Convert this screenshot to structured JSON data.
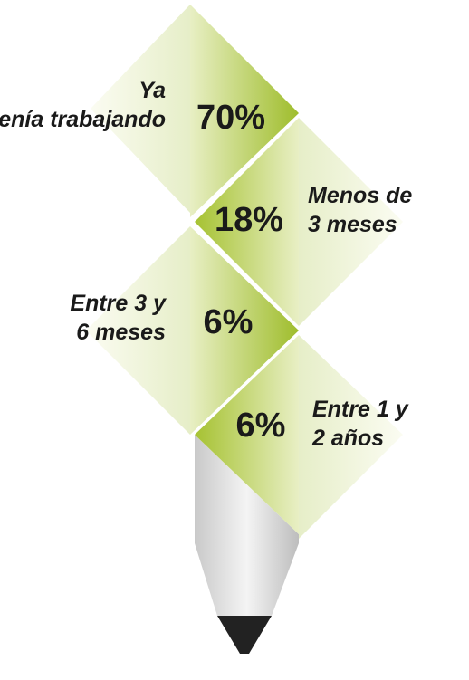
{
  "items": [
    {
      "label": "Ya venía trabajando",
      "value": "70%"
    },
    {
      "label": "Menos de 3 meses",
      "value": "18%"
    },
    {
      "label": "Entre 3 y 6 meses",
      "value": "6%"
    },
    {
      "label": "Entre 1 y 2 años",
      "value": "6%"
    }
  ]
}
